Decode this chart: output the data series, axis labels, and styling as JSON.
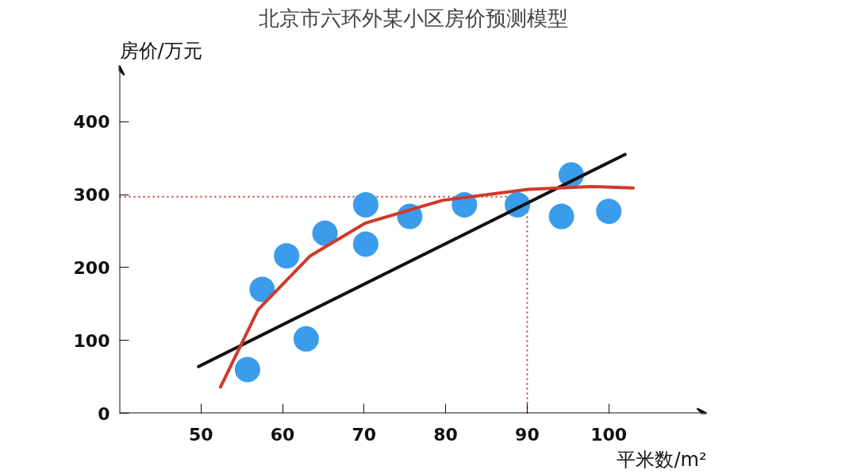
{
  "chart_data": {
    "type": "scatter",
    "title": "北京市六环外某小区房价预测模型",
    "xlabel": "平米数/m²",
    "ylabel": "房价/万元",
    "xlim": [
      40,
      112
    ],
    "ylim": [
      0,
      477
    ],
    "xticks": [
      50,
      60,
      70,
      80,
      90,
      100
    ],
    "yticks": [
      0,
      100,
      200,
      300,
      400
    ],
    "grid": false,
    "marker": "circle",
    "series": [
      {
        "color": "#3b9cec",
        "x": [
          55.7,
          57.5,
          60.5,
          62.9,
          65.2,
          70.2,
          70.2,
          75.6,
          82.3,
          88.8,
          95.4,
          94.2,
          100
        ],
        "values": [
          60,
          170,
          216,
          102,
          247,
          286,
          232,
          270,
          286,
          286,
          327,
          270,
          277
        ]
      },
      {
        "type": "line",
        "marker": "none",
        "color": "#111111",
        "line_style": "solid",
        "x": [
          49.7,
          102
        ],
        "values": [
          64,
          355
        ]
      },
      {
        "type": "line",
        "marker": "none",
        "color": "#d0392b",
        "line_style": "solid",
        "x": [
          52.4,
          57,
          63.4,
          70.2,
          79.6,
          90.1,
          97.8,
          103
        ],
        "values": [
          36,
          142,
          216,
          261,
          292,
          307,
          311,
          309
        ]
      }
    ],
    "ref_lines": [
      {
        "axis": "y",
        "value": 297,
        "color": "#c0392b",
        "line_style": "dotted"
      },
      {
        "axis": "x",
        "value": 90,
        "color": "#c0392b",
        "line_style": "dotted"
      }
    ]
  }
}
